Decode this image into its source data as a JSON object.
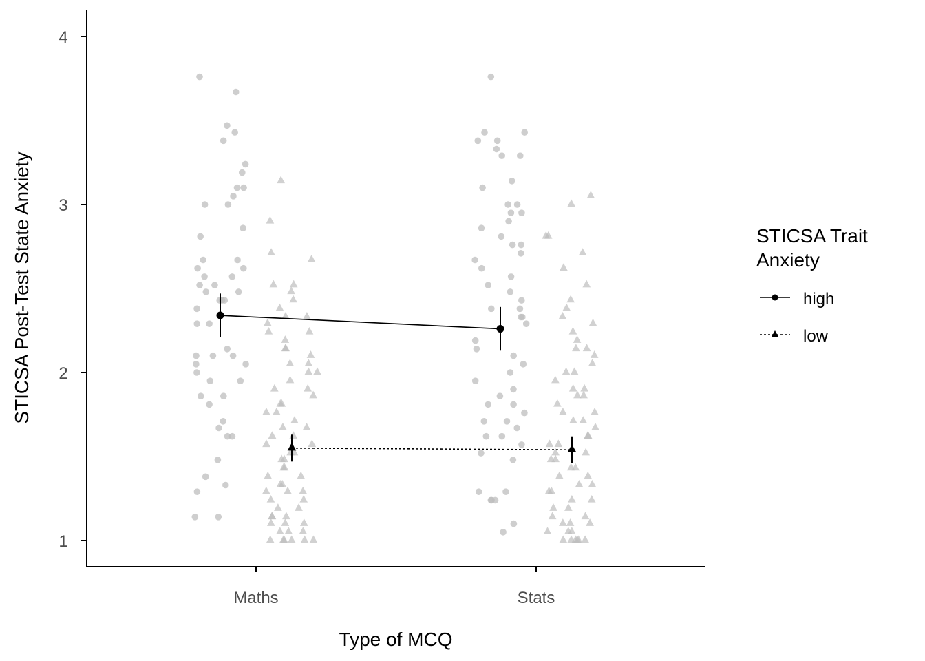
{
  "colors": {
    "raw_points": "#bdbdbd",
    "means": "#000000",
    "axis": "#000000",
    "tick_text": "#4d4d4d"
  },
  "chart_data": {
    "type": "scatter",
    "xlabel": "Type of MCQ",
    "ylabel": "STICSA Post-Test State Anxiety",
    "categories": [
      "Maths",
      "Stats"
    ],
    "ylim": [
      0.85,
      4.15
    ],
    "yticks": [
      1,
      2,
      3,
      4
    ],
    "grid": false,
    "legend": {
      "title_lines": [
        "STICSA Trait",
        "Anxiety"
      ],
      "placement": "right",
      "entries": [
        {
          "label": "high",
          "shape": "circle",
          "line": "solid"
        },
        {
          "label": "low",
          "shape": "triangle",
          "line": "dotted"
        }
      ]
    },
    "series": [
      {
        "name": "high",
        "shape": "circle",
        "line": "solid",
        "means": [
          2.34,
          2.26
        ],
        "lower": [
          2.21,
          2.13
        ],
        "upper": [
          2.47,
          2.39
        ],
        "raw": [
          [
            3.76,
            3.67,
            3.47,
            3.43,
            3.38,
            3.24,
            3.19,
            3.1,
            3.1,
            3.05,
            3.0,
            3.0,
            2.86,
            2.81,
            2.67,
            2.67,
            2.62,
            2.62,
            2.57,
            2.57,
            2.52,
            2.52,
            2.48,
            2.48,
            2.43,
            2.43,
            2.43,
            2.38,
            2.29,
            2.29,
            2.14,
            2.1,
            2.1,
            2.1,
            2.05,
            2.05,
            2.0,
            1.95,
            1.95,
            1.86,
            1.86,
            1.81,
            1.71,
            1.67,
            1.62,
            1.62,
            1.48,
            1.38,
            1.33,
            1.29,
            1.14,
            1.14
          ],
          [
            3.76,
            3.43,
            3.43,
            3.38,
            3.38,
            3.33,
            3.29,
            3.29,
            3.14,
            3.1,
            3.0,
            3.0,
            2.95,
            2.95,
            2.9,
            2.86,
            2.81,
            2.76,
            2.76,
            2.71,
            2.67,
            2.62,
            2.57,
            2.52,
            2.48,
            2.43,
            2.38,
            2.38,
            2.33,
            2.33,
            2.29,
            2.19,
            2.14,
            2.1,
            2.05,
            2.0,
            1.95,
            1.9,
            1.86,
            1.81,
            1.81,
            1.76,
            1.71,
            1.71,
            1.67,
            1.62,
            1.62,
            1.57,
            1.52,
            1.48,
            1.29,
            1.29,
            1.24,
            1.24,
            1.24,
            1.1,
            1.05
          ]
        ]
      },
      {
        "name": "low",
        "shape": "triangle",
        "line": "dotted",
        "means": [
          1.55,
          1.54
        ],
        "lower": [
          1.47,
          1.46
        ],
        "upper": [
          1.63,
          1.62
        ],
        "raw": [
          [
            3.14,
            2.9,
            2.71,
            2.67,
            2.52,
            2.52,
            2.48,
            2.43,
            2.38,
            2.33,
            2.33,
            2.29,
            2.24,
            2.24,
            2.19,
            2.14,
            2.14,
            2.1,
            2.05,
            2.05,
            2.0,
            2.0,
            1.95,
            1.9,
            1.9,
            1.86,
            1.81,
            1.81,
            1.76,
            1.76,
            1.71,
            1.67,
            1.67,
            1.62,
            1.62,
            1.57,
            1.57,
            1.52,
            1.52,
            1.48,
            1.48,
            1.43,
            1.43,
            1.38,
            1.38,
            1.33,
            1.33,
            1.29,
            1.29,
            1.29,
            1.24,
            1.24,
            1.19,
            1.19,
            1.14,
            1.14,
            1.14,
            1.1,
            1.1,
            1.1,
            1.05,
            1.05,
            1.05,
            1.0,
            1.0,
            1.0,
            1.0,
            1.0,
            1.0
          ],
          [
            3.05,
            3.0,
            2.81,
            2.81,
            2.71,
            2.62,
            2.52,
            2.43,
            2.38,
            2.33,
            2.29,
            2.24,
            2.19,
            2.14,
            2.14,
            2.1,
            2.05,
            2.0,
            2.0,
            1.95,
            1.9,
            1.9,
            1.86,
            1.86,
            1.81,
            1.76,
            1.76,
            1.71,
            1.71,
            1.67,
            1.62,
            1.62,
            1.57,
            1.57,
            1.52,
            1.52,
            1.48,
            1.48,
            1.43,
            1.43,
            1.38,
            1.38,
            1.33,
            1.33,
            1.29,
            1.29,
            1.24,
            1.24,
            1.19,
            1.19,
            1.14,
            1.14,
            1.1,
            1.1,
            1.1,
            1.05,
            1.05,
            1.05,
            1.0,
            1.0,
            1.0,
            1.0,
            1.0,
            1.0
          ]
        ]
      }
    ]
  }
}
